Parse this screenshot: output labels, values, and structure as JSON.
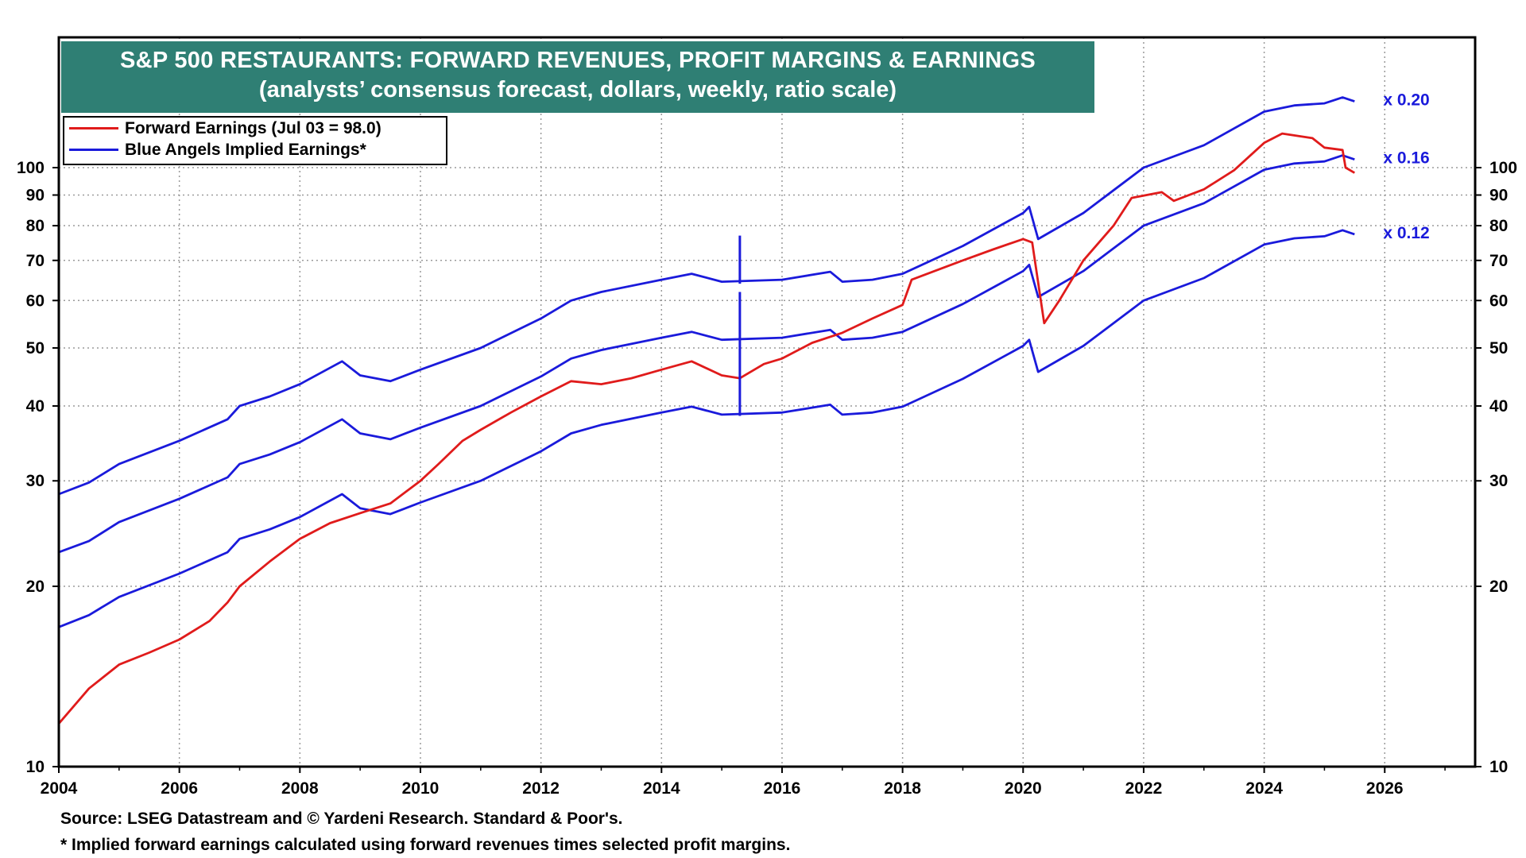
{
  "title": {
    "line1": "S&P 500 RESTAURANTS: FORWARD REVENUES, PROFIT MARGINS & EARNINGS",
    "line2": "(analysts’ consensus forecast, dollars, weekly, ratio scale)"
  },
  "legend": [
    {
      "label": "Forward Earnings (Jul 03 = 98.0)",
      "color": "#e01b1b"
    },
    {
      "label": "Blue Angels Implied Earnings*",
      "color": "#1a1adb"
    }
  ],
  "footnotes": {
    "source": "Source: LSEG Datastream and © Yardeni Research. Standard & Poor's.",
    "note": "* Implied forward earnings calculated using forward revenues times selected profit margins."
  },
  "chart_data": {
    "type": "line",
    "title": "S&P 500 RESTAURANTS: FORWARD REVENUES, PROFIT MARGINS & EARNINGS",
    "subtitle": "(analysts’ consensus forecast, dollars, weekly, ratio scale)",
    "xlim": [
      2004,
      2027.5
    ],
    "ylim": [
      10,
      165
    ],
    "yscale": "log",
    "x_ticks": [
      "2004",
      "2006",
      "2008",
      "2010",
      "2012",
      "2014",
      "2016",
      "2018",
      "2020",
      "2022",
      "2024",
      "2026"
    ],
    "y_ticks": [
      "10",
      "20",
      "30",
      "40",
      "50",
      "60",
      "70",
      "80",
      "90",
      "100"
    ],
    "grid": true,
    "legend_position": "top-left",
    "series": [
      {
        "name": "Forward Earnings (Jul 03 = 98.0)",
        "color": "#e01b1b",
        "points": [
          [
            2004.0,
            11.8
          ],
          [
            2004.5,
            13.5
          ],
          [
            2005.0,
            14.8
          ],
          [
            2005.5,
            15.5
          ],
          [
            2006.0,
            16.3
          ],
          [
            2006.5,
            17.5
          ],
          [
            2006.8,
            18.8
          ],
          [
            2007.0,
            20.0
          ],
          [
            2007.5,
            22.0
          ],
          [
            2008.0,
            24.0
          ],
          [
            2008.5,
            25.5
          ],
          [
            2009.0,
            26.5
          ],
          [
            2009.5,
            27.5
          ],
          [
            2010.0,
            30.0
          ],
          [
            2010.3,
            32.0
          ],
          [
            2010.7,
            35.0
          ],
          [
            2011.0,
            36.5
          ],
          [
            2011.5,
            39.0
          ],
          [
            2012.0,
            41.5
          ],
          [
            2012.5,
            44.0
          ],
          [
            2013.0,
            43.5
          ],
          [
            2013.5,
            44.5
          ],
          [
            2014.0,
            46.0
          ],
          [
            2014.5,
            47.5
          ],
          [
            2015.0,
            45.0
          ],
          [
            2015.3,
            44.5
          ],
          [
            2015.7,
            47.0
          ],
          [
            2016.0,
            48.0
          ],
          [
            2016.5,
            51.0
          ],
          [
            2017.0,
            53.0
          ],
          [
            2017.5,
            56.0
          ],
          [
            2018.0,
            59.0
          ],
          [
            2018.15,
            65.0
          ],
          [
            2018.5,
            67.0
          ],
          [
            2019.0,
            70.0
          ],
          [
            2019.5,
            73.0
          ],
          [
            2020.0,
            76.0
          ],
          [
            2020.15,
            75.0
          ],
          [
            2020.35,
            55.0
          ],
          [
            2020.6,
            60.0
          ],
          [
            2021.0,
            70.0
          ],
          [
            2021.5,
            80.0
          ],
          [
            2021.8,
            89.0
          ],
          [
            2022.3,
            91.0
          ],
          [
            2022.5,
            88.0
          ],
          [
            2023.0,
            92.0
          ],
          [
            2023.5,
            99.0
          ],
          [
            2024.0,
            110.0
          ],
          [
            2024.3,
            114.0
          ],
          [
            2024.8,
            112.0
          ],
          [
            2025.0,
            108.0
          ],
          [
            2025.3,
            107.0
          ],
          [
            2025.35,
            100.0
          ],
          [
            2025.5,
            98.0
          ]
        ]
      },
      {
        "name": "Blue Angels Implied Earnings* (x 0.20)",
        "color": "#1a1adb",
        "end_label": "x 0.20",
        "points": [
          [
            2004.0,
            28.5
          ],
          [
            2004.5,
            29.8
          ],
          [
            2005.0,
            32.0
          ],
          [
            2006.0,
            35.0
          ],
          [
            2006.8,
            38.0
          ],
          [
            2007.0,
            40.0
          ],
          [
            2007.5,
            41.5
          ],
          [
            2008.0,
            43.5
          ],
          [
            2008.7,
            47.5
          ],
          [
            2009.0,
            45.0
          ],
          [
            2009.5,
            44.0
          ],
          [
            2010.0,
            46.0
          ],
          [
            2011.0,
            50.0
          ],
          [
            2012.0,
            56.0
          ],
          [
            2012.5,
            60.0
          ],
          [
            2013.0,
            62.0
          ],
          [
            2014.0,
            65.0
          ],
          [
            2014.5,
            66.5
          ],
          [
            2015.0,
            64.5
          ],
          [
            2016.0,
            65.0
          ],
          [
            2016.8,
            67.0
          ],
          [
            2017.0,
            64.5
          ],
          [
            2017.5,
            65.0
          ],
          [
            2018.0,
            66.5
          ],
          [
            2019.0,
            74.0
          ],
          [
            2020.0,
            84.0
          ],
          [
            2020.1,
            86.0
          ],
          [
            2020.25,
            76.0
          ],
          [
            2021.0,
            84.0
          ],
          [
            2022.0,
            100.0
          ],
          [
            2023.0,
            109.0
          ],
          [
            2024.0,
            124.0
          ],
          [
            2024.5,
            127.0
          ],
          [
            2025.0,
            128.0
          ],
          [
            2025.3,
            131.0
          ],
          [
            2025.5,
            129.0
          ]
        ]
      },
      {
        "name": "Blue Angels Implied Earnings* (x 0.16)",
        "color": "#1a1adb",
        "end_label": "x 0.16",
        "points": [
          [
            2004.0,
            22.8
          ],
          [
            2004.5,
            23.8
          ],
          [
            2005.0,
            25.6
          ],
          [
            2006.0,
            28.0
          ],
          [
            2006.8,
            30.4
          ],
          [
            2007.0,
            32.0
          ],
          [
            2007.5,
            33.2
          ],
          [
            2008.0,
            34.8
          ],
          [
            2008.7,
            38.0
          ],
          [
            2009.0,
            36.0
          ],
          [
            2009.5,
            35.2
          ],
          [
            2010.0,
            36.8
          ],
          [
            2011.0,
            40.0
          ],
          [
            2012.0,
            44.8
          ],
          [
            2012.5,
            48.0
          ],
          [
            2013.0,
            49.6
          ],
          [
            2014.0,
            52.0
          ],
          [
            2014.5,
            53.2
          ],
          [
            2015.0,
            51.6
          ],
          [
            2016.0,
            52.0
          ],
          [
            2016.8,
            53.6
          ],
          [
            2017.0,
            51.6
          ],
          [
            2017.5,
            52.0
          ],
          [
            2018.0,
            53.2
          ],
          [
            2019.0,
            59.2
          ],
          [
            2020.0,
            67.2
          ],
          [
            2020.1,
            68.8
          ],
          [
            2020.25,
            60.8
          ],
          [
            2021.0,
            67.2
          ],
          [
            2022.0,
            80.0
          ],
          [
            2023.0,
            87.2
          ],
          [
            2024.0,
            99.2
          ],
          [
            2024.5,
            101.6
          ],
          [
            2025.0,
            102.4
          ],
          [
            2025.3,
            104.8
          ],
          [
            2025.5,
            103.2
          ]
        ]
      },
      {
        "name": "Blue Angels Implied Earnings* (x 0.12)",
        "color": "#1a1adb",
        "end_label": "x 0.12",
        "points": [
          [
            2004.0,
            17.1
          ],
          [
            2004.5,
            17.9
          ],
          [
            2005.0,
            19.2
          ],
          [
            2006.0,
            21.0
          ],
          [
            2006.8,
            22.8
          ],
          [
            2007.0,
            24.0
          ],
          [
            2007.5,
            24.9
          ],
          [
            2008.0,
            26.1
          ],
          [
            2008.7,
            28.5
          ],
          [
            2009.0,
            27.0
          ],
          [
            2009.5,
            26.4
          ],
          [
            2010.0,
            27.6
          ],
          [
            2011.0,
            30.0
          ],
          [
            2012.0,
            33.6
          ],
          [
            2012.5,
            36.0
          ],
          [
            2013.0,
            37.2
          ],
          [
            2014.0,
            39.0
          ],
          [
            2014.5,
            39.9
          ],
          [
            2015.0,
            38.7
          ],
          [
            2016.0,
            39.0
          ],
          [
            2016.8,
            40.2
          ],
          [
            2017.0,
            38.7
          ],
          [
            2017.5,
            39.0
          ],
          [
            2018.0,
            39.9
          ],
          [
            2019.0,
            44.4
          ],
          [
            2020.0,
            50.4
          ],
          [
            2020.1,
            51.6
          ],
          [
            2020.25,
            45.6
          ],
          [
            2021.0,
            50.4
          ],
          [
            2022.0,
            60.0
          ],
          [
            2023.0,
            65.4
          ],
          [
            2024.0,
            74.4
          ],
          [
            2024.5,
            76.2
          ],
          [
            2025.0,
            76.8
          ],
          [
            2025.3,
            78.6
          ],
          [
            2025.5,
            77.4
          ]
        ]
      }
    ]
  }
}
